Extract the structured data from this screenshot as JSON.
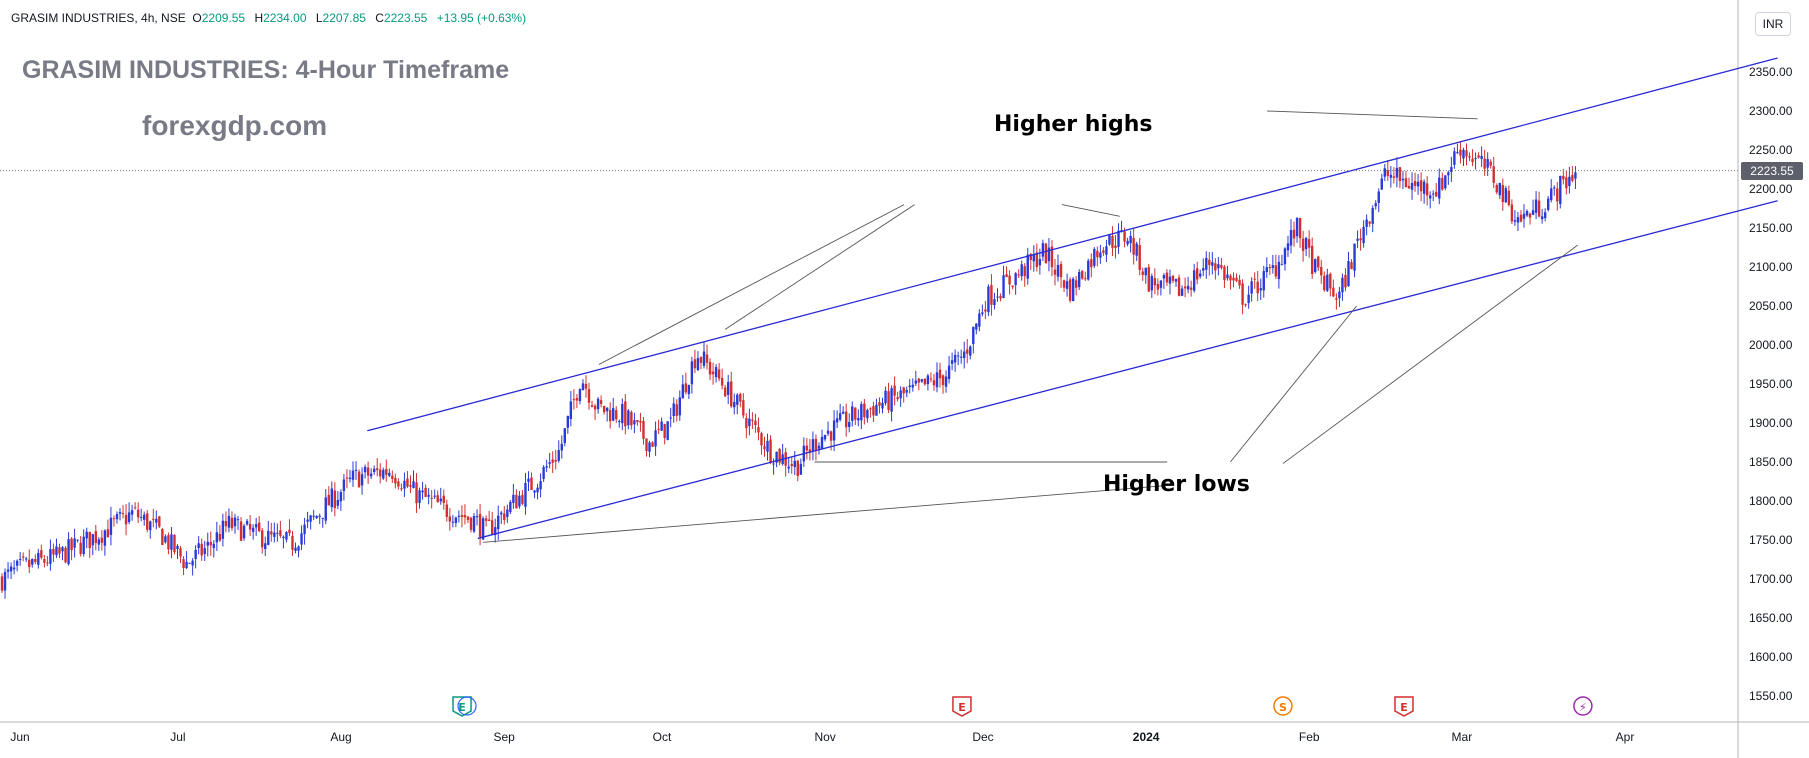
{
  "header": {
    "symbol": "GRASIM INDUSTRIES, 4h, NSE",
    "open_label": "O",
    "open": "2209.55",
    "high_label": "H",
    "high": "2234.00",
    "low_label": "L",
    "low": "2207.85",
    "close_label": "C",
    "close": "2223.55",
    "change": "+13.95 (+0.63%)"
  },
  "watermark": {
    "title": "GRASIM INDUSTRIES: 4-Hour Timeframe",
    "site": "forexgdp.com"
  },
  "annotations": {
    "higher_highs": "Higher highs",
    "higher_lows": "Higher lows"
  },
  "currency": "INR",
  "last_price": "2223.55",
  "colors": {
    "up": "#2a3ad8",
    "down": "#d32f2f",
    "trendline": "#2b2bd6",
    "annotation_line": "#555555"
  },
  "events": [
    {
      "label": "E",
      "month": "Aug",
      "type": "earnings"
    },
    {
      "label": "E",
      "month": "Nov",
      "type": "earnings"
    },
    {
      "label": "S",
      "month": "Jan",
      "type": "split"
    },
    {
      "label": "E",
      "month": "Feb",
      "type": "earnings"
    },
    {
      "label": "⚡",
      "month": "Mar",
      "type": "event"
    }
  ],
  "chart_data": {
    "type": "candlestick",
    "title": "",
    "xlabel": "",
    "ylabel": "",
    "ylim": [
      1510,
      2380
    ],
    "yticks": [
      2350,
      2300,
      2250,
      2200,
      2150,
      2100,
      2050,
      2000,
      1950,
      1900,
      1850,
      1800,
      1750,
      1700,
      1650,
      1600,
      1550
    ],
    "ytick_labels": [
      "2350.00",
      "2300.00",
      "2250.00",
      "2200.00",
      "2150.00",
      "2100.00",
      "2050.00",
      "2000.00",
      "1950.00",
      "1900.00",
      "1850.00",
      "1800.00",
      "1750.00",
      "1700.00",
      "1650.00",
      "1600.00",
      "1550.00"
    ],
    "x_labels": [
      "Jun",
      "Jul",
      "Aug",
      "Sep",
      "Oct",
      "Nov",
      "Dec",
      "2024",
      "Feb",
      "Mar",
      "Apr"
    ],
    "close_path": [
      [
        "2023-06-01",
        1700
      ],
      [
        "2023-06-05",
        1715
      ],
      [
        "2023-06-12",
        1730
      ],
      [
        "2023-06-20",
        1760
      ],
      [
        "2023-06-26",
        1785
      ],
      [
        "2023-07-01",
        1760
      ],
      [
        "2023-07-06",
        1720
      ],
      [
        "2023-07-10",
        1740
      ],
      [
        "2023-07-14",
        1770
      ],
      [
        "2023-07-20",
        1755
      ],
      [
        "2023-07-26",
        1745
      ],
      [
        "2023-08-01",
        1790
      ],
      [
        "2023-08-07",
        1830
      ],
      [
        "2023-08-14",
        1840
      ],
      [
        "2023-08-18",
        1812
      ],
      [
        "2023-08-24",
        1790
      ],
      [
        "2023-08-30",
        1775
      ],
      [
        "2023-09-01",
        1760
      ],
      [
        "2023-09-05",
        1790
      ],
      [
        "2023-09-11",
        1830
      ],
      [
        "2023-09-15",
        1865
      ],
      [
        "2023-09-19",
        1960
      ],
      [
        "2023-09-22",
        1920
      ],
      [
        "2023-09-27",
        1910
      ],
      [
        "2023-10-02",
        1875
      ],
      [
        "2023-10-06",
        1900
      ],
      [
        "2023-10-11",
        1990
      ],
      [
        "2023-10-16",
        1950
      ],
      [
        "2023-10-20",
        1910
      ],
      [
        "2023-10-25",
        1865
      ],
      [
        "2023-10-30",
        1845
      ],
      [
        "2023-11-03",
        1880
      ],
      [
        "2023-11-09",
        1905
      ],
      [
        "2023-11-15",
        1925
      ],
      [
        "2023-11-21",
        1940
      ],
      [
        "2023-11-27",
        1960
      ],
      [
        "2023-12-01",
        1990
      ],
      [
        "2023-12-05",
        2060
      ],
      [
        "2023-12-11",
        2090
      ],
      [
        "2023-12-16",
        2120
      ],
      [
        "2023-12-21",
        2070
      ],
      [
        "2023-12-27",
        2130
      ],
      [
        "2024-01-01",
        2140
      ],
      [
        "2024-01-05",
        2080
      ],
      [
        "2024-01-11",
        2070
      ],
      [
        "2024-01-17",
        2110
      ],
      [
        "2024-01-23",
        2060
      ],
      [
        "2024-01-29",
        2100
      ],
      [
        "2024-02-02",
        2150
      ],
      [
        "2024-02-06",
        2090
      ],
      [
        "2024-02-10",
        2060
      ],
      [
        "2024-02-14",
        2140
      ],
      [
        "2024-02-19",
        2220
      ],
      [
        "2024-02-24",
        2205
      ],
      [
        "2024-02-29",
        2200
      ],
      [
        "2024-03-04",
        2255
      ],
      [
        "2024-03-10",
        2220
      ],
      [
        "2024-03-15",
        2160
      ],
      [
        "2024-03-20",
        2180
      ],
      [
        "2024-03-26",
        2223.55
      ]
    ],
    "last_close": 2223.55,
    "trendlines": [
      {
        "name": "upper",
        "from": [
          "2023-08-06",
          1890
        ],
        "to": [
          "2024-04-30",
          2368
        ]
      },
      {
        "name": "lower",
        "from": [
          "2023-08-27",
          1752
        ],
        "to": [
          "2024-04-30",
          2185
        ]
      }
    ]
  }
}
